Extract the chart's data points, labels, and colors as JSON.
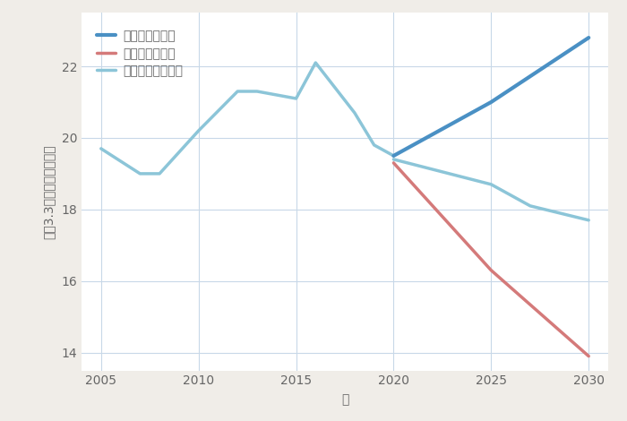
{
  "xlabel": "年",
  "ylabel": "坪（3.3㎡）単価（万円）",
  "background_color": "#f0ede8",
  "plot_bg_color": "#ffffff",
  "grid_color": "#c8d8e8",
  "historical": {
    "years": [
      2005,
      2007,
      2008,
      2010,
      2012,
      2013,
      2015,
      2016,
      2018,
      2019,
      2020
    ],
    "values": [
      19.7,
      19.0,
      19.0,
      20.2,
      21.3,
      21.3,
      21.1,
      22.1,
      20.7,
      19.8,
      19.5
    ]
  },
  "good_scenario": {
    "years": [
      2020,
      2025,
      2030
    ],
    "values": [
      19.5,
      21.0,
      22.8
    ],
    "color": "#4a90c4",
    "label": "グッドシナリオ",
    "linewidth": 3.0
  },
  "bad_scenario": {
    "years": [
      2020,
      2025,
      2030
    ],
    "values": [
      19.3,
      16.3,
      13.9
    ],
    "color": "#d47a7a",
    "label": "バッドシナリオ",
    "linewidth": 2.5
  },
  "normal_scenario": {
    "years": [
      2020,
      2025,
      2027,
      2030
    ],
    "values": [
      19.4,
      18.7,
      18.1,
      17.7
    ],
    "color": "#8cc5d8",
    "label": "ノーマルシナリオ",
    "linewidth": 2.5
  },
  "xlim": [
    2004,
    2031
  ],
  "ylim": [
    13.5,
    23.5
  ],
  "xticks": [
    2005,
    2010,
    2015,
    2020,
    2025,
    2030
  ],
  "yticks": [
    14,
    16,
    18,
    20,
    22
  ],
  "title_fontsize": 18,
  "label_fontsize": 10,
  "tick_fontsize": 10,
  "legend_fontsize": 10,
  "title_color": "#444444",
  "tick_color": "#666666"
}
